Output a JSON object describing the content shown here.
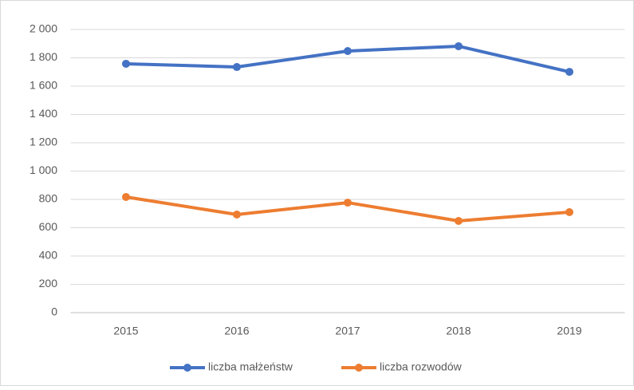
{
  "chart_data": {
    "type": "line",
    "categories": [
      "2015",
      "2016",
      "2017",
      "2018",
      "2019"
    ],
    "series": [
      {
        "name": "liczba małżeństw",
        "color": "#4472c4",
        "values": [
          1758,
          1735,
          1848,
          1882,
          1701
        ]
      },
      {
        "name": "liczba rozwodów",
        "color": "#ed7d31",
        "values": [
          817,
          693,
          777,
          648,
          710
        ]
      }
    ],
    "ylim": [
      0,
      2000
    ],
    "yticks": [
      0,
      200,
      400,
      600,
      800,
      {
        "value": 1000,
        "label": "1 000"
      },
      {
        "value": 1200,
        "label": "1 200"
      },
      {
        "value": 1400,
        "label": "1 400"
      },
      {
        "value": 1600,
        "label": "1 600"
      },
      {
        "value": 1800,
        "label": "1 800"
      },
      {
        "value": 2000,
        "label": "2 000"
      }
    ],
    "grid": true,
    "legend": "bottom"
  }
}
